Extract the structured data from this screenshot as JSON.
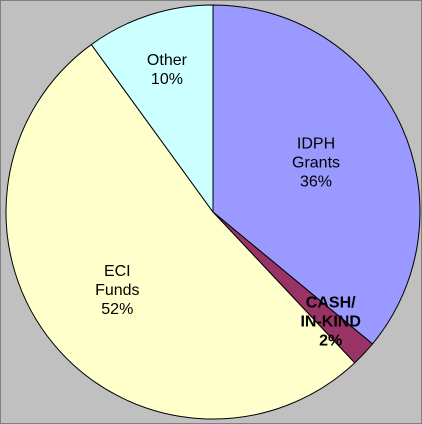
{
  "chart_data": {
    "type": "pie",
    "categories": [
      "IDPH Grants",
      "CASH/ IN-KIND",
      "ECI Funds",
      "Other"
    ],
    "values": [
      36,
      2,
      52,
      10
    ],
    "value_labels": [
      "36%",
      "2%",
      "52%",
      "10%"
    ],
    "colors": [
      "#9999ff",
      "#993366",
      "#ffffcc",
      "#ccffff"
    ],
    "bold_labels": [
      false,
      true,
      false,
      false
    ]
  }
}
